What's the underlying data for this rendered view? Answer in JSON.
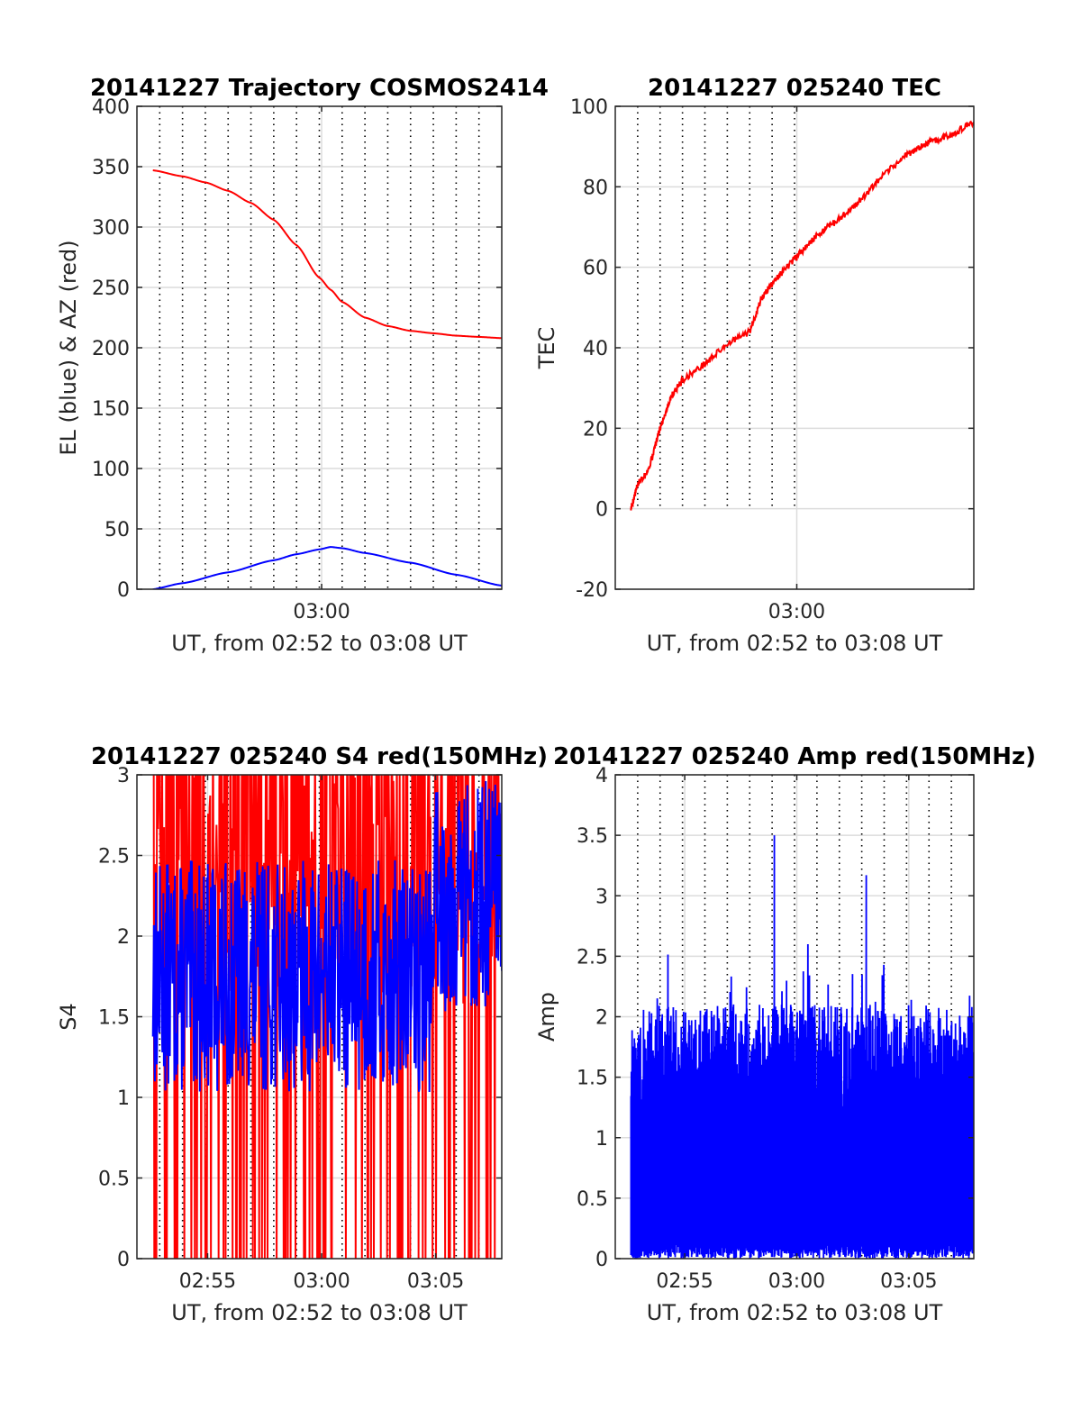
{
  "colors": {
    "red": "#ff0000",
    "blue": "#0000ff",
    "axis": "#262626",
    "grid": "#dcdcdc",
    "vgrid": "#000000"
  },
  "chart_data": [
    {
      "type": "line",
      "title": "20141227 Trajectory COSMOS2414",
      "xlabel": "UT, from 02:52 to 03:08 UT",
      "ylabel": "EL (blue) & AZ (red)",
      "xlim": [
        0,
        16
      ],
      "ylim": [
        0,
        400
      ],
      "yticks": [
        0,
        50,
        100,
        150,
        200,
        250,
        300,
        350,
        400
      ],
      "xticks": [
        {
          "x": 8.1,
          "label": "03:00"
        }
      ],
      "dotted_grid_x": [
        1,
        2,
        3,
        4,
        5,
        6,
        7,
        8,
        9,
        10,
        11,
        12,
        13,
        14,
        15
      ],
      "grid": true,
      "series": [
        {
          "kind": "az",
          "color": "red",
          "x": [
            0.7,
            2,
            3,
            4,
            5,
            6,
            7,
            8,
            8.5,
            9,
            10,
            11,
            12,
            13,
            14,
            15,
            16
          ],
          "values": [
            347,
            342,
            337,
            330,
            320,
            306,
            285,
            258,
            248,
            238,
            225,
            218,
            214,
            212,
            210,
            209,
            208
          ]
        },
        {
          "kind": "el",
          "color": "blue",
          "x": [
            0.7,
            2,
            4,
            6,
            7,
            8,
            8.5,
            9,
            10,
            12,
            14,
            16
          ],
          "values": [
            0,
            5,
            14,
            24,
            29,
            33,
            35,
            34,
            30,
            22,
            12,
            3
          ]
        }
      ]
    },
    {
      "type": "line",
      "title": "20141227 025240 TEC",
      "xlabel": "UT, from 02:52 to 03:08 UT",
      "ylabel": "TEC",
      "xlim": [
        0,
        16
      ],
      "ylim": [
        -20,
        100
      ],
      "yticks": [
        -20,
        0,
        20,
        40,
        60,
        80,
        100
      ],
      "xticks": [
        {
          "x": 8.1,
          "label": "03:00"
        }
      ],
      "dotted_grid_x": [
        1,
        2,
        3,
        4,
        5,
        6,
        7,
        8
      ],
      "dotted_ylim": [
        0,
        100
      ],
      "grid": true,
      "series": [
        {
          "kind": "tec",
          "color": "red",
          "x": [
            0.7,
            1,
            1.5,
            2,
            2.5,
            3,
            4,
            5,
            6,
            6.5,
            7,
            8,
            8.5,
            9,
            10,
            11,
            12,
            13,
            14,
            15,
            16
          ],
          "values": [
            0,
            6,
            10,
            20,
            28,
            32,
            36,
            41,
            44,
            52,
            56,
            62,
            65,
            68,
            72,
            77,
            83,
            88,
            91,
            93,
            96
          ]
        }
      ]
    },
    {
      "type": "line",
      "title": "20141227 025240 S4 red(150MHz)",
      "xlabel": "UT, from 02:52 to 03:08 UT",
      "ylabel": "S4",
      "xlim": [
        0,
        16
      ],
      "ylim": [
        0,
        3
      ],
      "yticks": [
        0,
        0.5,
        1,
        1.5,
        2,
        2.5,
        3
      ],
      "xticks": [
        {
          "x": 3.1,
          "label": "02:55"
        },
        {
          "x": 8.1,
          "label": "03:00"
        },
        {
          "x": 13.1,
          "label": "03:05"
        }
      ],
      "dotted_grid_x": [
        1,
        2,
        3,
        4,
        5,
        6,
        7,
        8,
        9,
        10,
        11,
        12,
        13,
        14,
        15
      ],
      "grid": true,
      "series": [
        {
          "kind": "noise-red",
          "color": "red",
          "x_start": 0.7,
          "x_end": 16,
          "samples": 500,
          "mean": 2.3,
          "spread": 1.2,
          "dropout_rate": 0.18,
          "seed": 7
        },
        {
          "kind": "noise-blue",
          "color": "blue",
          "x_start": 0.7,
          "x_end": 16,
          "samples": 700,
          "mean": 1.75,
          "spread": 0.45,
          "seed": 13
        }
      ]
    },
    {
      "type": "line",
      "title": "20141227 025240 Amp red(150MHz)",
      "xlabel": "UT, from 02:52 to 03:08 UT",
      "ylabel": "Amp",
      "xlim": [
        0,
        16
      ],
      "ylim": [
        0,
        4
      ],
      "yticks": [
        0,
        0.5,
        1,
        1.5,
        2,
        2.5,
        3,
        3.5,
        4
      ],
      "xticks": [
        {
          "x": 3.1,
          "label": "02:55"
        },
        {
          "x": 8.1,
          "label": "03:00"
        },
        {
          "x": 13.1,
          "label": "03:05"
        }
      ],
      "dotted_grid_x": [
        1,
        2,
        3,
        4,
        5,
        6,
        7,
        8,
        9,
        10,
        11,
        12,
        13,
        14,
        15
      ],
      "grid": true,
      "series": [
        {
          "kind": "amp",
          "color": "blue",
          "x_start": 0.7,
          "x_end": 16,
          "samples": 900,
          "top_mean": 1.6,
          "top_spread": 0.5,
          "seed": 21,
          "peaks": [
            {
              "x": 7.1,
              "value": 3.5
            },
            {
              "x": 11.2,
              "value": 3.17
            },
            {
              "x": 8.6,
              "value": 2.6
            }
          ]
        }
      ]
    }
  ]
}
